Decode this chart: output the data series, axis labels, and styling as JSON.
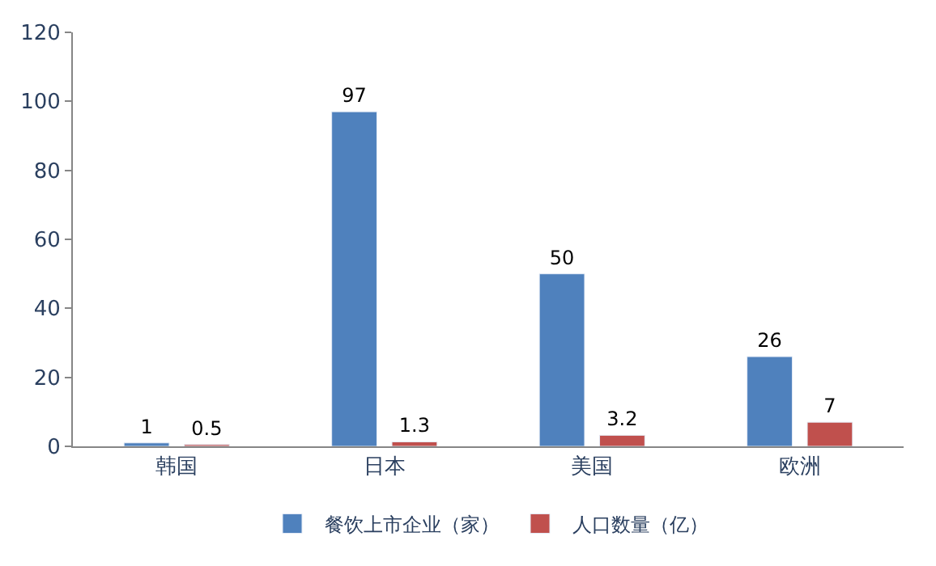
{
  "chart_data": {
    "type": "bar",
    "categories": [
      "韩国",
      "日本",
      "美国",
      "欧洲"
    ],
    "series": [
      {
        "name": "餐饮上市企业（家）",
        "color": "#4f81bd",
        "values": [
          1,
          97,
          50,
          26
        ]
      },
      {
        "name": "人口数量（亿）",
        "color": "#c0504d",
        "values": [
          0.5,
          1.3,
          3.2,
          7
        ]
      }
    ],
    "ylim": [
      0,
      120
    ],
    "yticks": [
      0,
      20,
      40,
      60,
      80,
      100,
      120
    ],
    "grid": false,
    "legend": "bottom",
    "data_labels": true
  }
}
